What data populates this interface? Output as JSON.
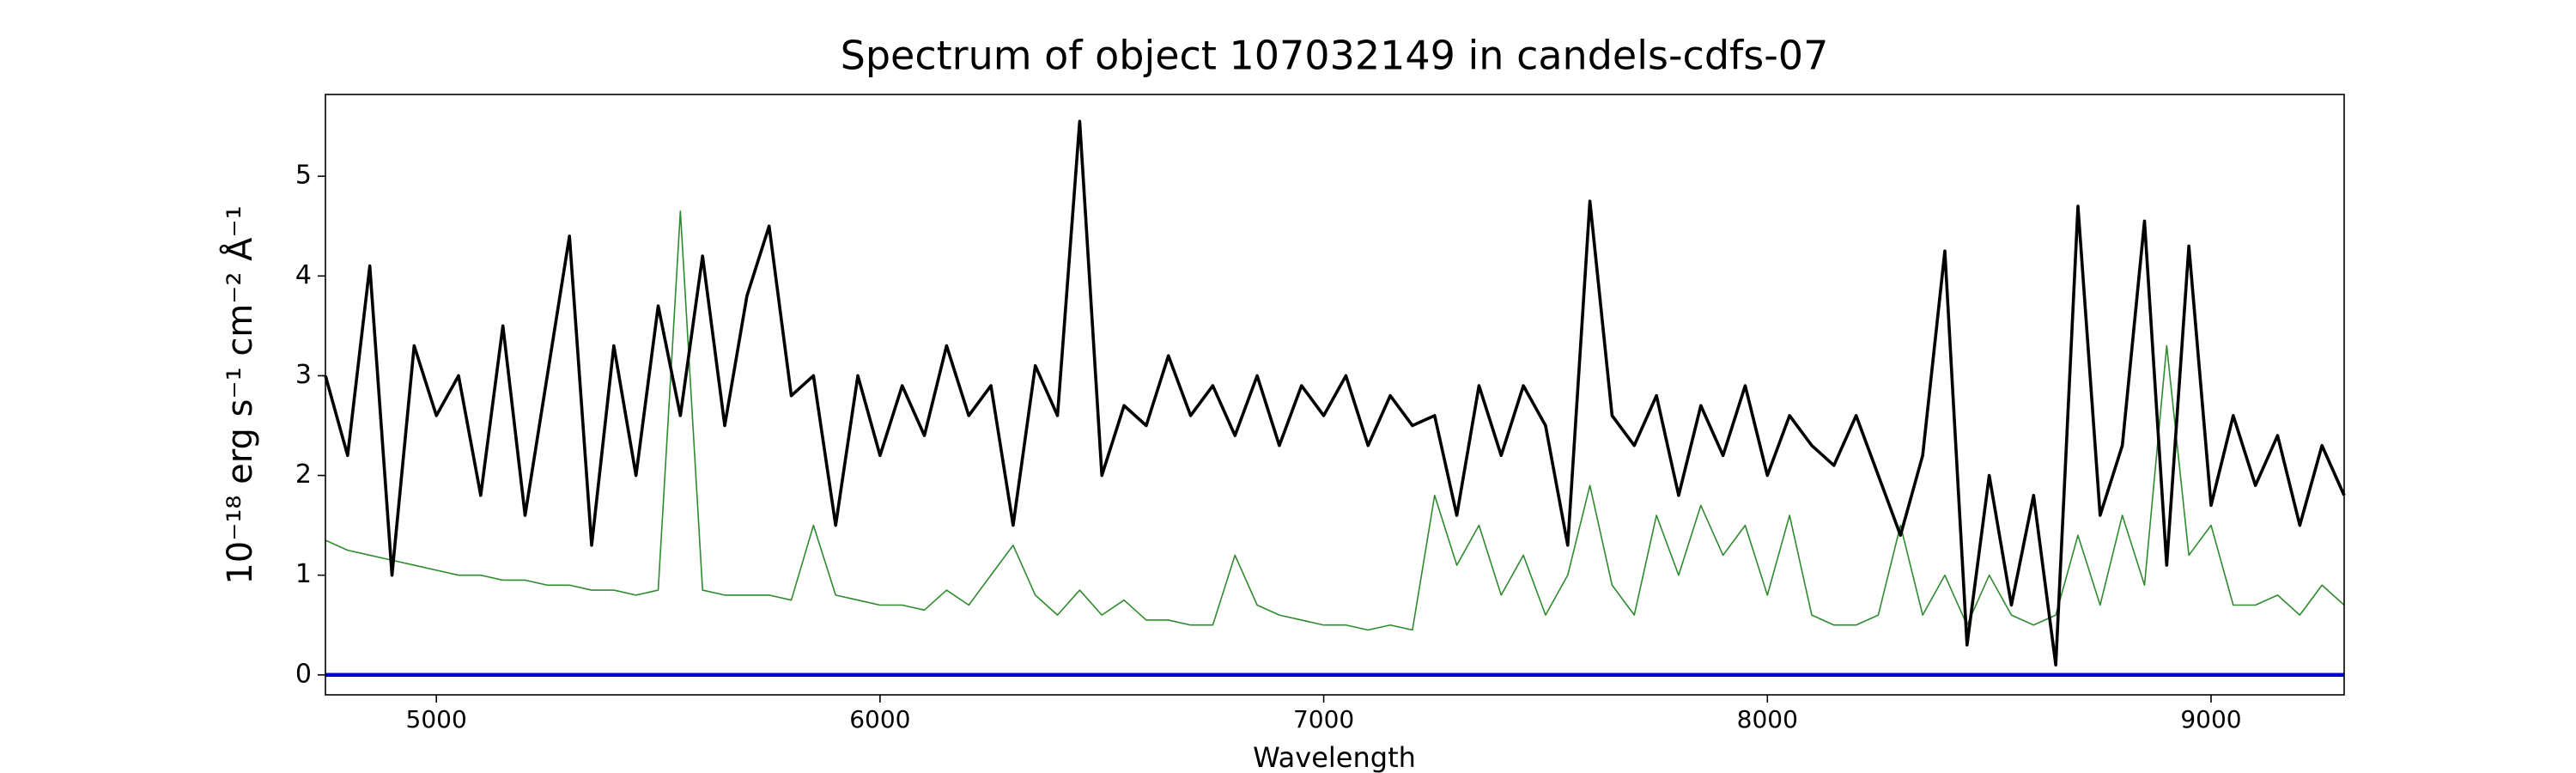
{
  "chart_data": {
    "type": "line",
    "title": "Spectrum of object 107032149 in candels-cdfs-07",
    "xlabel": "Wavelength",
    "ylabel": "10⁻¹⁸ erg s⁻¹ cm⁻² Å⁻¹",
    "x": [
      4750,
      4800,
      4850,
      4900,
      4950,
      5000,
      5050,
      5100,
      5150,
      5200,
      5250,
      5300,
      5350,
      5400,
      5450,
      5500,
      5550,
      5600,
      5650,
      5700,
      5750,
      5800,
      5850,
      5900,
      5950,
      6000,
      6050,
      6100,
      6150,
      6200,
      6250,
      6300,
      6350,
      6400,
      6450,
      6500,
      6550,
      6600,
      6650,
      6700,
      6750,
      6800,
      6850,
      6900,
      6950,
      7000,
      7050,
      7100,
      7150,
      7200,
      7250,
      7300,
      7350,
      7400,
      7450,
      7500,
      7550,
      7600,
      7650,
      7700,
      7750,
      7800,
      7850,
      7900,
      7950,
      8000,
      8050,
      8100,
      8150,
      8200,
      8250,
      8300,
      8350,
      8400,
      8450,
      8500,
      8550,
      8600,
      8650,
      8700,
      8750,
      8800,
      8850,
      8900,
      8950,
      9000,
      9050,
      9100,
      9150,
      9200,
      9250,
      9300
    ],
    "series": [
      {
        "color": "#2e8b2e",
        "width": 1.6,
        "values": [
          1.35,
          1.25,
          1.2,
          1.15,
          1.1,
          1.05,
          1.0,
          1.0,
          0.95,
          0.95,
          0.9,
          0.9,
          0.85,
          0.85,
          0.8,
          0.85,
          4.65,
          0.85,
          0.8,
          0.8,
          0.8,
          0.75,
          1.5,
          0.8,
          0.75,
          0.7,
          0.7,
          0.65,
          0.85,
          0.7,
          1.0,
          1.3,
          0.8,
          0.6,
          0.85,
          0.6,
          0.75,
          0.55,
          0.55,
          0.5,
          0.5,
          1.2,
          0.7,
          0.6,
          0.55,
          0.5,
          0.5,
          0.45,
          0.5,
          0.45,
          1.8,
          1.1,
          1.5,
          0.8,
          1.2,
          0.6,
          1.0,
          1.9,
          0.9,
          0.6,
          1.6,
          1.0,
          1.7,
          1.2,
          1.5,
          0.8,
          1.6,
          0.6,
          0.5,
          0.5,
          0.6,
          1.5,
          0.6,
          1.0,
          0.5,
          1.0,
          0.6,
          0.5,
          0.6,
          1.4,
          0.7,
          1.6,
          0.9,
          3.3,
          1.2,
          1.5,
          0.7,
          0.7,
          0.8,
          0.6,
          0.9,
          0.7
        ]
      },
      {
        "color": "#000000",
        "width": 3.6,
        "values": [
          3.0,
          2.2,
          4.1,
          1.0,
          3.3,
          2.6,
          3.0,
          1.8,
          3.5,
          1.6,
          3.0,
          4.4,
          1.3,
          3.3,
          2.0,
          3.7,
          2.6,
          4.2,
          2.5,
          3.8,
          4.5,
          2.8,
          3.0,
          1.5,
          3.0,
          2.2,
          2.9,
          2.4,
          3.3,
          2.6,
          2.9,
          1.5,
          3.1,
          2.6,
          5.55,
          2.0,
          2.7,
          2.5,
          3.2,
          2.6,
          2.9,
          2.4,
          3.0,
          2.3,
          2.9,
          2.6,
          3.0,
          2.3,
          2.8,
          2.5,
          2.6,
          1.6,
          2.9,
          2.2,
          2.9,
          2.5,
          1.3,
          4.75,
          2.6,
          2.3,
          2.8,
          1.8,
          2.7,
          2.2,
          2.9,
          2.0,
          2.6,
          2.3,
          2.1,
          2.6,
          2.0,
          1.4,
          2.2,
          4.25,
          0.3,
          2.0,
          0.7,
          1.8,
          0.1,
          4.7,
          1.6,
          2.3,
          4.55,
          1.1,
          4.3,
          1.7,
          2.6,
          1.9,
          2.4,
          1.5,
          2.3,
          1.8
        ]
      }
    ],
    "axhline": {
      "y": 0,
      "color": "#0000cc"
    },
    "xlim": [
      4750,
      9300
    ],
    "ylim": [
      -0.2,
      5.82
    ],
    "xticks": [
      5000,
      6000,
      7000,
      8000,
      9000
    ],
    "yticks": [
      0,
      1,
      2,
      3,
      4,
      5
    ],
    "grid": false
  }
}
